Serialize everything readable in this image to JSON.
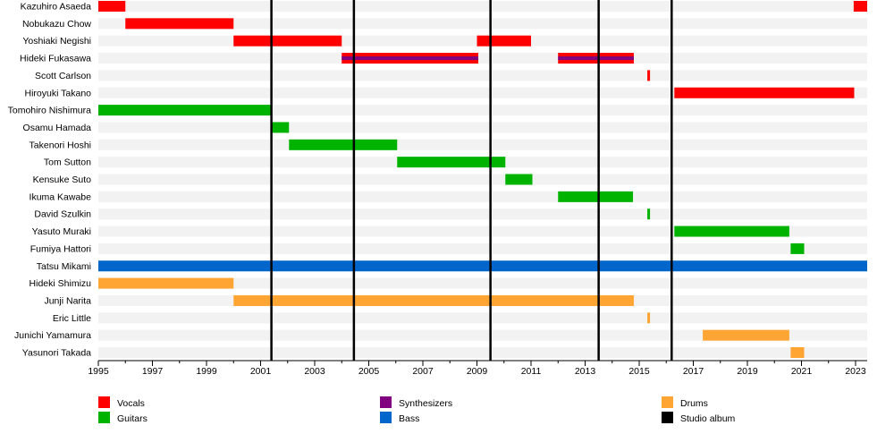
{
  "chart_data": {
    "type": "timeline",
    "xlim": [
      1995,
      2023.43
    ],
    "x_ticks": [
      1995,
      1997,
      1999,
      2001,
      2003,
      2005,
      2007,
      2009,
      2011,
      2013,
      2015,
      2017,
      2019,
      2021,
      2023
    ],
    "colors": {
      "Vocals": "#ff0000",
      "Guitars": "#00b300",
      "Synthesizers": "#800080",
      "Bass": "#0066cc",
      "Drums": "#ffa533",
      "Studio album": "#000000"
    },
    "legend": [
      "Vocals",
      "Guitars",
      "Synthesizers",
      "Bass",
      "Drums",
      "Studio album"
    ],
    "legend_placement": "bottom",
    "studio_albums": [
      2001.4,
      2004.45,
      2009.5,
      2013.5,
      2016.2
    ],
    "members": [
      {
        "name": "Kazuhiro Asaeda",
        "spans": [
          {
            "role": "Vocals",
            "from": 1995,
            "to": 1996
          },
          {
            "role": "Vocals",
            "from": 2022.93,
            "to": 2023.43
          }
        ]
      },
      {
        "name": "Nobukazu Chow",
        "spans": [
          {
            "role": "Vocals",
            "from": 1996,
            "to": 2000
          }
        ]
      },
      {
        "name": "Yoshiaki Negishi",
        "spans": [
          {
            "role": "Vocals",
            "from": 2000,
            "to": 2004
          },
          {
            "role": "Vocals",
            "from": 2009,
            "to": 2011
          }
        ]
      },
      {
        "name": "Hideki Fukasawa",
        "spans": [
          {
            "role": "Vocals",
            "from": 2004,
            "to": 2009.05,
            "secondary": "Synthesizers"
          },
          {
            "role": "Vocals",
            "from": 2012,
            "to": 2014.8,
            "secondary": "Synthesizers"
          }
        ]
      },
      {
        "name": "Scott Carlson",
        "spans": [
          {
            "role": "Vocals",
            "from": 2015.3,
            "to": 2015.4
          }
        ]
      },
      {
        "name": "Hiroyuki Takano",
        "spans": [
          {
            "role": "Vocals",
            "from": 2016.3,
            "to": 2022.95
          }
        ]
      },
      {
        "name": "Tomohiro Nishimura",
        "spans": [
          {
            "role": "Guitars",
            "from": 1995,
            "to": 2001.4
          }
        ]
      },
      {
        "name": "Osamu Hamada",
        "spans": [
          {
            "role": "Guitars",
            "from": 2001.4,
            "to": 2002.05
          }
        ]
      },
      {
        "name": "Takenori Hoshi",
        "spans": [
          {
            "role": "Guitars",
            "from": 2002.05,
            "to": 2006.05
          }
        ]
      },
      {
        "name": "Tom Sutton",
        "spans": [
          {
            "role": "Guitars",
            "from": 2006.05,
            "to": 2010.05
          }
        ]
      },
      {
        "name": "Kensuke Suto",
        "spans": [
          {
            "role": "Guitars",
            "from": 2010.05,
            "to": 2011.05
          }
        ]
      },
      {
        "name": "Ikuma Kawabe",
        "spans": [
          {
            "role": "Guitars",
            "from": 2012,
            "to": 2014.77
          }
        ]
      },
      {
        "name": "David Szulkin",
        "spans": [
          {
            "role": "Guitars",
            "from": 2015.3,
            "to": 2015.4
          }
        ]
      },
      {
        "name": "Yasuto Muraki",
        "spans": [
          {
            "role": "Guitars",
            "from": 2016.3,
            "to": 2020.55
          }
        ]
      },
      {
        "name": "Fumiya Hattori",
        "spans": [
          {
            "role": "Guitars",
            "from": 2020.6,
            "to": 2021.1
          }
        ]
      },
      {
        "name": "Tatsu Mikami",
        "spans": [
          {
            "role": "Bass",
            "from": 1995,
            "to": 2023.43
          }
        ]
      },
      {
        "name": "Hideki Shimizu",
        "spans": [
          {
            "role": "Drums",
            "from": 1995,
            "to": 2000
          }
        ]
      },
      {
        "name": "Junji Narita",
        "spans": [
          {
            "role": "Drums",
            "from": 2000,
            "to": 2014.8
          }
        ]
      },
      {
        "name": "Eric Little",
        "spans": [
          {
            "role": "Drums",
            "from": 2015.3,
            "to": 2015.4
          }
        ]
      },
      {
        "name": "Junichi Yamamura",
        "spans": [
          {
            "role": "Drums",
            "from": 2017.35,
            "to": 2020.55
          }
        ]
      },
      {
        "name": "Yasunori Takada",
        "spans": [
          {
            "role": "Drums",
            "from": 2020.6,
            "to": 2021.1
          }
        ]
      }
    ]
  }
}
